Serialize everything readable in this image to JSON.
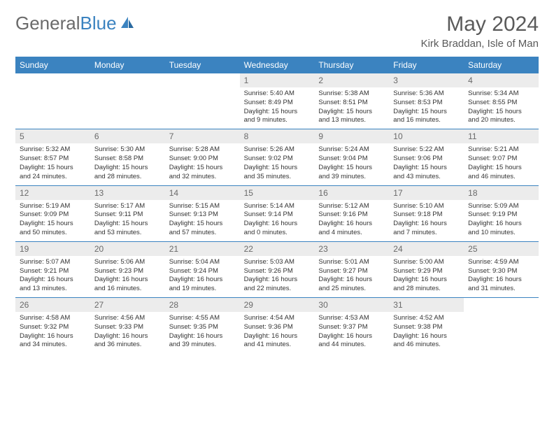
{
  "logo": {
    "text1": "General",
    "text2": "Blue"
  },
  "title": "May 2024",
  "location": "Kirk Braddan, Isle of Man",
  "colors": {
    "header_bg": "#3b83c0",
    "daynum_bg": "#ececec",
    "text_muted": "#6a6a6a",
    "border": "#3b83c0"
  },
  "dayNames": [
    "Sunday",
    "Monday",
    "Tuesday",
    "Wednesday",
    "Thursday",
    "Friday",
    "Saturday"
  ],
  "weeks": [
    [
      null,
      null,
      null,
      {
        "d": "1",
        "sr": "5:40 AM",
        "ss": "8:49 PM",
        "dl": "15 hours and 9 minutes."
      },
      {
        "d": "2",
        "sr": "5:38 AM",
        "ss": "8:51 PM",
        "dl": "15 hours and 13 minutes."
      },
      {
        "d": "3",
        "sr": "5:36 AM",
        "ss": "8:53 PM",
        "dl": "15 hours and 16 minutes."
      },
      {
        "d": "4",
        "sr": "5:34 AM",
        "ss": "8:55 PM",
        "dl": "15 hours and 20 minutes."
      }
    ],
    [
      {
        "d": "5",
        "sr": "5:32 AM",
        "ss": "8:57 PM",
        "dl": "15 hours and 24 minutes."
      },
      {
        "d": "6",
        "sr": "5:30 AM",
        "ss": "8:58 PM",
        "dl": "15 hours and 28 minutes."
      },
      {
        "d": "7",
        "sr": "5:28 AM",
        "ss": "9:00 PM",
        "dl": "15 hours and 32 minutes."
      },
      {
        "d": "8",
        "sr": "5:26 AM",
        "ss": "9:02 PM",
        "dl": "15 hours and 35 minutes."
      },
      {
        "d": "9",
        "sr": "5:24 AM",
        "ss": "9:04 PM",
        "dl": "15 hours and 39 minutes."
      },
      {
        "d": "10",
        "sr": "5:22 AM",
        "ss": "9:06 PM",
        "dl": "15 hours and 43 minutes."
      },
      {
        "d": "11",
        "sr": "5:21 AM",
        "ss": "9:07 PM",
        "dl": "15 hours and 46 minutes."
      }
    ],
    [
      {
        "d": "12",
        "sr": "5:19 AM",
        "ss": "9:09 PM",
        "dl": "15 hours and 50 minutes."
      },
      {
        "d": "13",
        "sr": "5:17 AM",
        "ss": "9:11 PM",
        "dl": "15 hours and 53 minutes."
      },
      {
        "d": "14",
        "sr": "5:15 AM",
        "ss": "9:13 PM",
        "dl": "15 hours and 57 minutes."
      },
      {
        "d": "15",
        "sr": "5:14 AM",
        "ss": "9:14 PM",
        "dl": "16 hours and 0 minutes."
      },
      {
        "d": "16",
        "sr": "5:12 AM",
        "ss": "9:16 PM",
        "dl": "16 hours and 4 minutes."
      },
      {
        "d": "17",
        "sr": "5:10 AM",
        "ss": "9:18 PM",
        "dl": "16 hours and 7 minutes."
      },
      {
        "d": "18",
        "sr": "5:09 AM",
        "ss": "9:19 PM",
        "dl": "16 hours and 10 minutes."
      }
    ],
    [
      {
        "d": "19",
        "sr": "5:07 AM",
        "ss": "9:21 PM",
        "dl": "16 hours and 13 minutes."
      },
      {
        "d": "20",
        "sr": "5:06 AM",
        "ss": "9:23 PM",
        "dl": "16 hours and 16 minutes."
      },
      {
        "d": "21",
        "sr": "5:04 AM",
        "ss": "9:24 PM",
        "dl": "16 hours and 19 minutes."
      },
      {
        "d": "22",
        "sr": "5:03 AM",
        "ss": "9:26 PM",
        "dl": "16 hours and 22 minutes."
      },
      {
        "d": "23",
        "sr": "5:01 AM",
        "ss": "9:27 PM",
        "dl": "16 hours and 25 minutes."
      },
      {
        "d": "24",
        "sr": "5:00 AM",
        "ss": "9:29 PM",
        "dl": "16 hours and 28 minutes."
      },
      {
        "d": "25",
        "sr": "4:59 AM",
        "ss": "9:30 PM",
        "dl": "16 hours and 31 minutes."
      }
    ],
    [
      {
        "d": "26",
        "sr": "4:58 AM",
        "ss": "9:32 PM",
        "dl": "16 hours and 34 minutes."
      },
      {
        "d": "27",
        "sr": "4:56 AM",
        "ss": "9:33 PM",
        "dl": "16 hours and 36 minutes."
      },
      {
        "d": "28",
        "sr": "4:55 AM",
        "ss": "9:35 PM",
        "dl": "16 hours and 39 minutes."
      },
      {
        "d": "29",
        "sr": "4:54 AM",
        "ss": "9:36 PM",
        "dl": "16 hours and 41 minutes."
      },
      {
        "d": "30",
        "sr": "4:53 AM",
        "ss": "9:37 PM",
        "dl": "16 hours and 44 minutes."
      },
      {
        "d": "31",
        "sr": "4:52 AM",
        "ss": "9:38 PM",
        "dl": "16 hours and 46 minutes."
      },
      null
    ]
  ],
  "labels": {
    "sunrise": "Sunrise:",
    "sunset": "Sunset:",
    "daylight": "Daylight:"
  }
}
